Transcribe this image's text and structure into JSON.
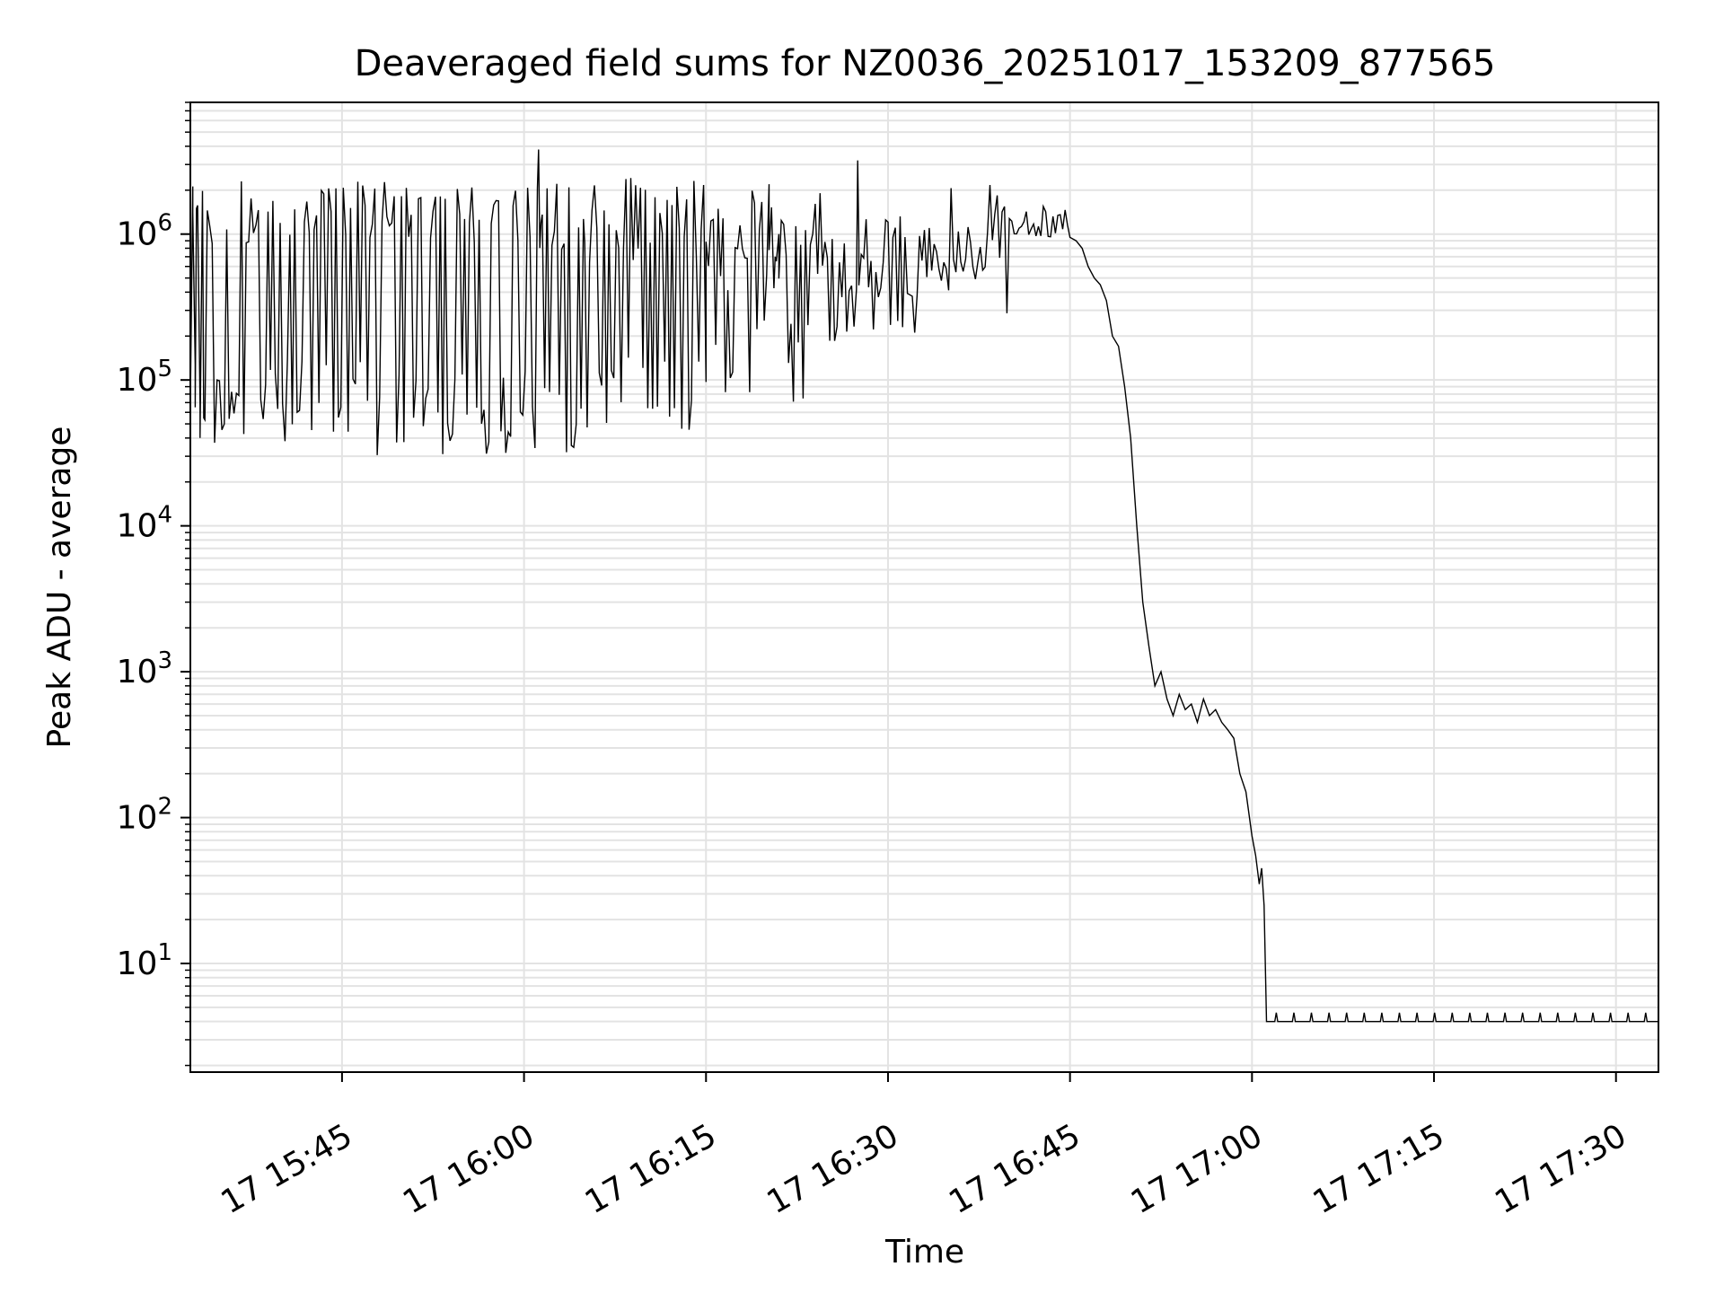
{
  "chart_data": {
    "type": "line",
    "title": "Deaveraged field sums for NZ0036_20251017_153209_877565",
    "xlabel": "Time",
    "ylabel": "Peak ADU - average",
    "yscale": "log",
    "ylim": [
      1.8,
      8000000
    ],
    "xlim_minutes": [
      -12.5,
      108.5
    ],
    "x_unit": "minutes after 17 15:45",
    "grid": true,
    "x_ticks": [
      {
        "minute": 0,
        "label": "17 15:45"
      },
      {
        "minute": 15,
        "label": "17 16:00"
      },
      {
        "minute": 30,
        "label": "17 16:15"
      },
      {
        "minute": 45,
        "label": "17 16:30"
      },
      {
        "minute": 60,
        "label": "17 16:45"
      },
      {
        "minute": 75,
        "label": "17 17:00"
      },
      {
        "minute": 90,
        "label": "17 17:15"
      },
      {
        "minute": 105,
        "label": "17 17:30"
      }
    ],
    "y_ticks": [
      {
        "value": 10,
        "base": "10",
        "exp": "1"
      },
      {
        "value": 100,
        "base": "10",
        "exp": "2"
      },
      {
        "value": 1000,
        "base": "10",
        "exp": "3"
      },
      {
        "value": 10000,
        "base": "10",
        "exp": "4"
      },
      {
        "value": 100000,
        "base": "10",
        "exp": "5"
      },
      {
        "value": 1000000,
        "base": "10",
        "exp": "6"
      }
    ],
    "series": [
      {
        "name": "Peak ADU - average",
        "color": "#000000",
        "segments": [
          {
            "t0": -12.5,
            "t1": 8.5,
            "hi": 1400000,
            "lo": 62000,
            "hi_jitter": 0.22,
            "lo_jitter": 0.35,
            "p_low": 0.42
          },
          {
            "t0": 8.5,
            "t1": 20.0,
            "hi": 1300000,
            "lo": 62000,
            "hi_jitter": 0.25,
            "lo_jitter": 0.3,
            "p_low": 0.45
          },
          {
            "t0": 20.0,
            "t1": 30.0,
            "hi": 1250000,
            "lo": 80000,
            "hi_jitter": 0.3,
            "lo_jitter": 0.3,
            "p_low": 0.4
          },
          {
            "t0": 30.0,
            "t1": 40.0,
            "hi": 900000,
            "lo": 120000,
            "hi_jitter": 0.35,
            "lo_jitter": 0.35,
            "p_low": 0.3
          },
          {
            "t0": 40.0,
            "t1": 48.0,
            "hi": 700000,
            "lo": 300000,
            "hi_jitter": 0.3,
            "lo_jitter": 0.25,
            "p_low": 0.3
          },
          {
            "t0": 48.0,
            "t1": 55.0,
            "hi": 1000000,
            "lo": 500000,
            "hi_jitter": 0.35,
            "lo_jitter": 0.25,
            "p_low": 0.25
          },
          {
            "t0": 55.0,
            "t1": 60.0,
            "hi": 1200000,
            "lo": 900000,
            "hi_jitter": 0.12,
            "lo_jitter": 0.1,
            "p_low": 0.2
          }
        ],
        "points": [
          [
            -12.5,
            70000
          ],
          [
            -12.3,
            1400000
          ],
          [
            -12.1,
            65000
          ],
          [
            -12.0,
            1500000
          ],
          [
            -11.7,
            40000
          ],
          [
            -11.4,
            55000
          ],
          [
            16.2,
            3800000
          ],
          [
            16.4,
            1200000
          ],
          [
            35.2,
            2200000
          ],
          [
            35.4,
            1500000
          ],
          [
            35.7,
            700000
          ],
          [
            36.0,
            1000000
          ],
          [
            42.5,
            3200000
          ],
          [
            42.6,
            900000
          ],
          [
            60.0,
            950000
          ],
          [
            60.5,
            900000
          ],
          [
            61.0,
            800000
          ],
          [
            61.5,
            600000
          ],
          [
            62.0,
            500000
          ],
          [
            62.5,
            450000
          ],
          [
            63.0,
            350000
          ],
          [
            63.5,
            200000
          ],
          [
            64.0,
            170000
          ],
          [
            64.5,
            90000
          ],
          [
            65.0,
            40000
          ],
          [
            65.5,
            10000
          ],
          [
            66.0,
            3000
          ],
          [
            66.5,
            1500
          ],
          [
            67.0,
            800
          ],
          [
            67.5,
            1000
          ],
          [
            68.0,
            650
          ],
          [
            68.5,
            500
          ],
          [
            69.0,
            700
          ],
          [
            69.5,
            550
          ],
          [
            70.0,
            600
          ],
          [
            70.5,
            450
          ],
          [
            71.0,
            650
          ],
          [
            71.5,
            500
          ],
          [
            72.0,
            550
          ],
          [
            72.5,
            450
          ],
          [
            73.0,
            400
          ],
          [
            73.5,
            350
          ],
          [
            74.0,
            200
          ],
          [
            74.5,
            150
          ],
          [
            75.0,
            75
          ],
          [
            75.3,
            55
          ],
          [
            75.6,
            35
          ],
          [
            75.8,
            45
          ],
          [
            76.0,
            25
          ],
          [
            76.2,
            4
          ],
          [
            108.5,
            4
          ]
        ]
      }
    ]
  }
}
